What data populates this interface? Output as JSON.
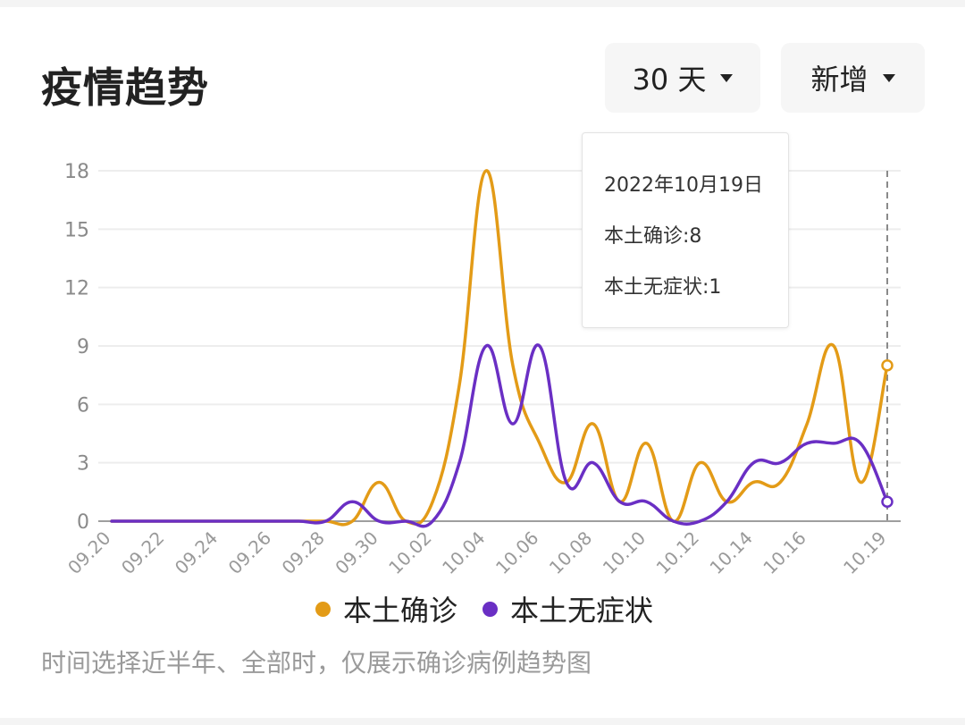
{
  "header": {
    "title": "疫情趋势",
    "range_label": "30 天",
    "mode_label": "新增"
  },
  "tooltip": {
    "date": "2022年10月19日",
    "line1": "本土确诊:8",
    "line2": "本土无症状:1"
  },
  "legend": {
    "series1": "本土确诊",
    "series2": "本土无症状"
  },
  "footnote": "时间选择近半年、全部时，仅展示确诊病例趋势图",
  "colors": {
    "confirmed": "#e39b17",
    "asymptomatic": "#6a2fc4"
  },
  "chart_data": {
    "type": "line",
    "x": [
      "09.20",
      "09.21",
      "09.22",
      "09.23",
      "09.24",
      "09.25",
      "09.26",
      "09.27",
      "09.28",
      "09.29",
      "09.30",
      "10.01",
      "10.02",
      "10.03",
      "10.04",
      "10.05",
      "10.06",
      "10.07",
      "10.08",
      "10.09",
      "10.10",
      "10.11",
      "10.12",
      "10.13",
      "10.14",
      "10.15",
      "10.16",
      "10.17",
      "10.18",
      "10.19"
    ],
    "x_tick_labels": [
      "09.20",
      "09.22",
      "09.24",
      "09.26",
      "09.28",
      "09.30",
      "10.02",
      "10.04",
      "10.06",
      "10.08",
      "10.10",
      "10.12",
      "10.14",
      "10.16",
      "10.19"
    ],
    "y_ticks": [
      0,
      3,
      6,
      9,
      12,
      15,
      18
    ],
    "ylim": [
      0,
      18
    ],
    "grid": true,
    "legend_position": "bottom",
    "series": [
      {
        "name": "本土确诊",
        "color": "#e39b17",
        "values": [
          0,
          0,
          0,
          0,
          0,
          0,
          0,
          0,
          0,
          0,
          2,
          0,
          1,
          7,
          18,
          8,
          4,
          2,
          5,
          1,
          4,
          0,
          3,
          1,
          2,
          2,
          5,
          9,
          2,
          8
        ]
      },
      {
        "name": "本土无症状",
        "color": "#6a2fc4",
        "values": [
          0,
          0,
          0,
          0,
          0,
          0,
          0,
          0,
          0,
          1,
          0,
          0,
          0,
          3,
          9,
          5,
          9,
          2,
          3,
          1,
          1,
          0,
          0,
          1,
          3,
          3,
          4,
          4,
          4,
          1
        ]
      }
    ],
    "highlight": "10.19"
  }
}
